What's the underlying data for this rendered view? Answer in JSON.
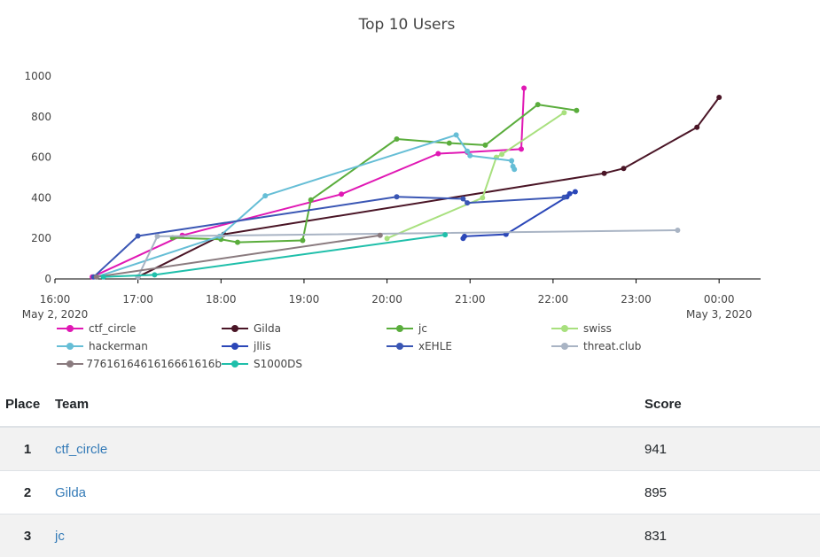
{
  "chart_data": {
    "type": "line",
    "title": "Top 10 Users",
    "xlim": [
      "2020-05-02 16:00",
      "2020-05-03 00:30"
    ],
    "ylim": [
      0,
      1000
    ],
    "yticks": [
      0,
      200,
      400,
      600,
      800,
      1000
    ],
    "xticks": [
      {
        "t": "2020-05-02 16:00",
        "label": "16:00",
        "sublabel": "May 2, 2020"
      },
      {
        "t": "2020-05-02 17:00",
        "label": "17:00"
      },
      {
        "t": "2020-05-02 18:00",
        "label": "18:00"
      },
      {
        "t": "2020-05-02 19:00",
        "label": "19:00"
      },
      {
        "t": "2020-05-02 20:00",
        "label": "20:00"
      },
      {
        "t": "2020-05-02 21:00",
        "label": "21:00"
      },
      {
        "t": "2020-05-02 22:00",
        "label": "22:00"
      },
      {
        "t": "2020-05-02 23:00",
        "label": "23:00"
      },
      {
        "t": "2020-05-03 00:00",
        "label": "00:00",
        "sublabel": "May 3, 2020"
      }
    ],
    "grid": false,
    "legend_position": "bottom",
    "series": [
      {
        "name": "ctf_circle",
        "color": "#e018b4",
        "points": [
          [
            "2020-05-02 16:27",
            10
          ],
          [
            "2020-05-02 17:32",
            215
          ],
          [
            "2020-05-02 19:27",
            418
          ],
          [
            "2020-05-02 20:37",
            618
          ],
          [
            "2020-05-02 20:58",
            625
          ],
          [
            "2020-05-02 21:37",
            640
          ],
          [
            "2020-05-02 21:39",
            941
          ]
        ]
      },
      {
        "name": "Gilda",
        "color": "#4a1526",
        "points": [
          [
            "2020-05-02 17:00",
            10
          ],
          [
            "2020-05-02 18:02",
            220
          ],
          [
            "2020-05-02 22:37",
            521
          ],
          [
            "2020-05-02 22:51",
            545
          ],
          [
            "2020-05-02 23:44",
            748
          ],
          [
            "2020-05-03 00:00",
            895
          ]
        ]
      },
      {
        "name": "jc",
        "color": "#5aad3c",
        "points": [
          [
            "2020-05-02 17:25",
            203
          ],
          [
            "2020-05-02 18:00",
            195
          ],
          [
            "2020-05-02 18:12",
            181
          ],
          [
            "2020-05-02 18:59",
            190
          ],
          [
            "2020-05-02 19:05",
            390
          ],
          [
            "2020-05-02 20:07",
            690
          ],
          [
            "2020-05-02 20:45",
            670
          ],
          [
            "2020-05-02 21:11",
            660
          ],
          [
            "2020-05-02 21:49",
            860
          ],
          [
            "2020-05-02 22:17",
            831
          ]
        ]
      },
      {
        "name": "swiss",
        "color": "#a8e07e",
        "points": [
          [
            "2020-05-02 20:00",
            200
          ],
          [
            "2020-05-02 21:09",
            400
          ],
          [
            "2020-05-02 21:19",
            600
          ],
          [
            "2020-05-02 21:23",
            615
          ],
          [
            "2020-05-02 22:08",
            820
          ]
        ]
      },
      {
        "name": "hackerman",
        "color": "#66bed6",
        "points": [
          [
            "2020-05-02 16:30",
            10
          ],
          [
            "2020-05-02 17:59",
            210
          ],
          [
            "2020-05-02 18:32",
            410
          ],
          [
            "2020-05-02 20:50",
            710
          ],
          [
            "2020-05-02 20:58",
            630
          ],
          [
            "2020-05-02 21:00",
            608
          ],
          [
            "2020-05-02 21:30",
            583
          ],
          [
            "2020-05-02 21:31",
            555
          ],
          [
            "2020-05-02 21:32",
            540
          ]
        ]
      },
      {
        "name": "jllis",
        "color": "#2b47b8",
        "points": [
          [
            "2020-05-02 20:55",
            200
          ],
          [
            "2020-05-02 20:56",
            210
          ],
          [
            "2020-05-02 21:26",
            220
          ],
          [
            "2020-05-02 22:10",
            405
          ],
          [
            "2020-05-02 22:12",
            420
          ],
          [
            "2020-05-02 22:16",
            430
          ]
        ]
      },
      {
        "name": "xEHLE",
        "color": "#3a56b4",
        "points": [
          [
            "2020-05-02 16:28",
            10
          ],
          [
            "2020-05-02 17:00",
            212
          ],
          [
            "2020-05-02 20:07",
            405
          ],
          [
            "2020-05-02 20:55",
            395
          ],
          [
            "2020-05-02 20:58",
            375
          ],
          [
            "2020-05-02 22:08",
            403
          ]
        ]
      },
      {
        "name": "threat.club",
        "color": "#a9b4c4",
        "points": [
          [
            "2020-05-02 17:00",
            10
          ],
          [
            "2020-05-02 17:14",
            210
          ],
          [
            "2020-05-02 23:30",
            240
          ]
        ]
      },
      {
        "name": "7761616461616661616b",
        "color": "#8a7b7f",
        "points": [
          [
            "2020-05-02 16:30",
            10
          ],
          [
            "2020-05-02 19:55",
            215
          ]
        ]
      },
      {
        "name": "S1000DS",
        "color": "#1fbfaa",
        "points": [
          [
            "2020-05-02 16:35",
            10
          ],
          [
            "2020-05-02 17:12",
            20
          ],
          [
            "2020-05-02 20:42",
            218
          ]
        ]
      }
    ]
  },
  "table": {
    "headers": {
      "place": "Place",
      "team": "Team",
      "score": "Score"
    },
    "rows": [
      {
        "place": "1",
        "team": "ctf_circle",
        "score": "941"
      },
      {
        "place": "2",
        "team": "Gilda",
        "score": "895"
      },
      {
        "place": "3",
        "team": "jc",
        "score": "831"
      }
    ]
  }
}
